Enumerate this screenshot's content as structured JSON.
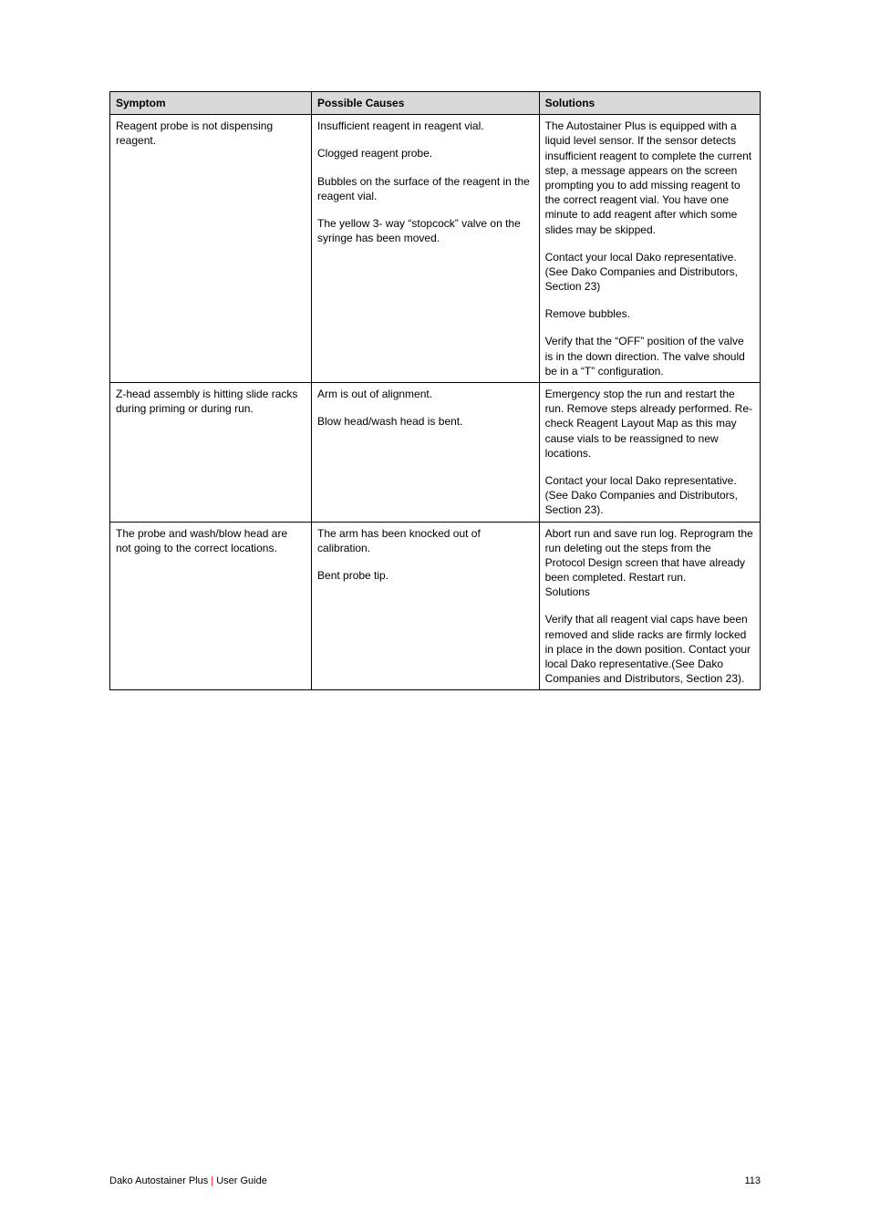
{
  "table": {
    "headers": [
      "Symptom",
      "Possible Causes",
      "Solutions"
    ],
    "header_bg": "#d9d9d9",
    "border_color": "#000000",
    "font_size": 12,
    "col_widths_pct": [
      31,
      35,
      34
    ],
    "rows": [
      {
        "symptom": "Reagent probe is not dispensing reagent.",
        "pairs": [
          {
            "cause": "Insufficient reagent in reagent vial.",
            "solution": "The Autostainer Plus is equipped with a liquid level sensor. If the sensor detects insufficient reagent to complete the current step, a message appears on the screen prompting you to add missing reagent to the correct reagent vial. You have one minute to add reagent after which some slides may be skipped."
          },
          {
            "cause": "Clogged reagent probe.",
            "solution": "Contact your local Dako representative.(See Dako Companies and Distributors, Section 23)"
          },
          {
            "cause": "Bubbles on the surface of the reagent in the reagent vial.",
            "solution": "Remove bubbles."
          },
          {
            "cause": "The yellow 3- way “stopcock” valve on the syringe has been moved.",
            "solution": "Verify that the “OFF” position of the valve is in the down direction. The valve should be in a “T” configuration."
          }
        ]
      },
      {
        "symptom": "Z-head assembly is hitting slide racks during priming or during run.",
        "pairs": [
          {
            "cause": "Arm is out of alignment.",
            "solution": "Emergency stop the run and restart the run.  Remove steps already performed.  Re-check Reagent Layout Map as this may cause vials to be reassigned to new locations."
          },
          {
            "cause": "Blow head/wash head is bent.",
            "solution": "Contact your local Dako representative.(See Dako Companies and Distributors, Section 23)."
          }
        ]
      },
      {
        "symptom": "The probe and wash/blow head are not going to the correct locations.",
        "pairs": [
          {
            "cause": "The arm has been knocked out of calibration.",
            "solution": "Abort run and save run log. Reprogram the run deleting out the steps from the Protocol Design screen that have already been completed. Restart run.\nSolutions"
          },
          {
            "cause": "Bent probe tip.",
            "solution": "Verify that all reagent vial caps have been removed and slide racks are firmly locked in place in the down position.  Contact your local Dako representative.(See Dako Companies and Distributors, Section 23)."
          }
        ]
      }
    ]
  },
  "footer": {
    "left_black": "Dako Autostainer Plus ",
    "left_red": "|",
    "left_suffix": " User Guide",
    "page": "113",
    "red_color": "#e30613"
  }
}
